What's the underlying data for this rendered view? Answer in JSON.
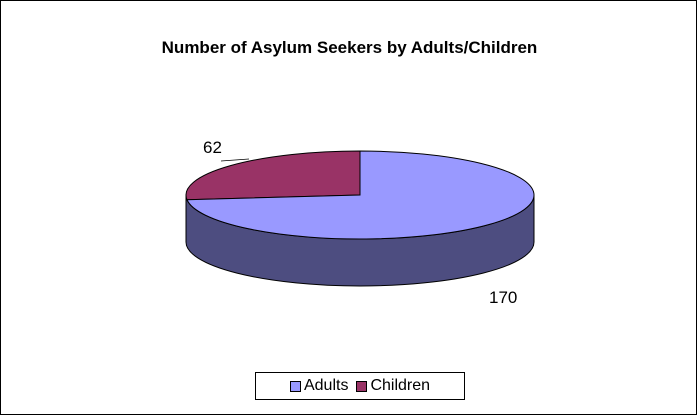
{
  "chart_data": {
    "type": "pie",
    "title": "Number of Asylum Seekers by Adults/Children",
    "categories": [
      "Adults",
      "Children"
    ],
    "values": [
      170,
      62
    ],
    "colors": [
      "#9999ff",
      "#993366"
    ],
    "side_colors": [
      "#4d4d80",
      "#4d1933"
    ],
    "style": "3d",
    "legend_position": "bottom"
  }
}
